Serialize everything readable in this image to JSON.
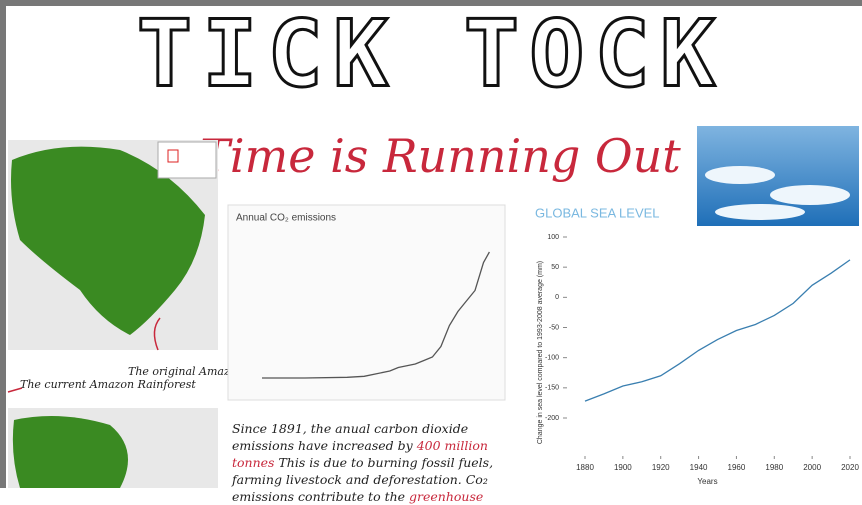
{
  "header": {
    "title": "TICK TOCK",
    "subtitle": "Time is Running Out"
  },
  "map_labels": [
    "The current Amazon Rainforest",
    "The original Amazon Rainforest"
  ],
  "paragraph": [
    "Since 1891, the anual carbon dioxide emissions have increased by ",
    "400 million tonnes",
    " This is due to burning fossil fuels, farming livestock and deforestation. Co₂ emissions contribute to the ",
    "greenhouse"
  ],
  "chart_data": [
    {
      "type": "line",
      "title": "Annual CO₂ emissions",
      "color": "#555555",
      "x": [
        1750,
        1800,
        1850,
        1870,
        1900,
        1910,
        1920,
        1930,
        1940,
        1950,
        1960,
        1970,
        1980,
        1990,
        2000,
        2010,
        2017
      ],
      "values": [
        0,
        0,
        0.2,
        0.5,
        2,
        3,
        3.5,
        4,
        5,
        6,
        9,
        15,
        19,
        22,
        25,
        33,
        36
      ],
      "xlim": [
        1750,
        2020
      ],
      "ylim": [
        0,
        40
      ]
    },
    {
      "type": "line",
      "title": "GLOBAL SEA LEVEL",
      "color": "#3a7fb0",
      "x_label": "Years",
      "y_label": "Change in sea level compared to 1993-2008 average (mm)",
      "x": [
        1880,
        1890,
        1900,
        1910,
        1920,
        1930,
        1940,
        1950,
        1960,
        1970,
        1980,
        1990,
        2000,
        2010,
        2020
      ],
      "values": [
        -172,
        -160,
        -147,
        -140,
        -130,
        -110,
        -88,
        -70,
        -55,
        -45,
        -30,
        -10,
        20,
        40,
        62
      ],
      "xlim": [
        1880,
        2020
      ],
      "ylim": [
        -200,
        100
      ],
      "xticks": [
        1880,
        1900,
        1920,
        1940,
        1960,
        1980,
        2000,
        2020
      ],
      "yticks": [
        100,
        50,
        0,
        -50,
        -100,
        -150,
        -200
      ]
    }
  ]
}
